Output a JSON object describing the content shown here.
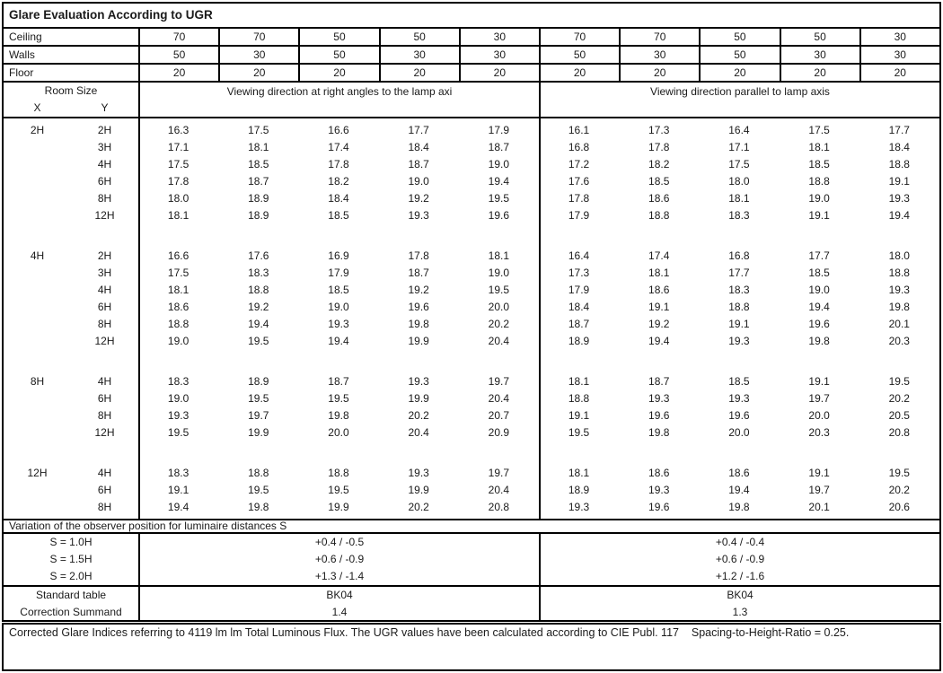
{
  "title": "Glare Evaluation According to UGR",
  "surfaces": {
    "ceiling_label": "Ceiling",
    "walls_label": "Walls",
    "floor_label": "Floor",
    "ceiling": [
      "70",
      "70",
      "50",
      "50",
      "30",
      "70",
      "70",
      "50",
      "50",
      "30"
    ],
    "walls": [
      "50",
      "30",
      "50",
      "30",
      "30",
      "50",
      "30",
      "50",
      "30",
      "30"
    ],
    "floor": [
      "20",
      "20",
      "20",
      "20",
      "20",
      "20",
      "20",
      "20",
      "20",
      "20"
    ]
  },
  "ugr_table": {
    "room_size_label": "Room Size",
    "x_label": "X",
    "y_label": "Y",
    "left_group_header": "Viewing direction at right angles to the lamp axi",
    "right_group_header": "Viewing direction parallel to lamp axis",
    "blocks": [
      {
        "x": "2H",
        "rows": [
          {
            "y": "2H",
            "left": [
              "16.3",
              "17.5",
              "16.6",
              "17.7",
              "17.9"
            ],
            "right": [
              "16.1",
              "17.3",
              "16.4",
              "17.5",
              "17.7"
            ]
          },
          {
            "y": "3H",
            "left": [
              "17.1",
              "18.1",
              "17.4",
              "18.4",
              "18.7"
            ],
            "right": [
              "16.8",
              "17.8",
              "17.1",
              "18.1",
              "18.4"
            ]
          },
          {
            "y": "4H",
            "left": [
              "17.5",
              "18.5",
              "17.8",
              "18.7",
              "19.0"
            ],
            "right": [
              "17.2",
              "18.2",
              "17.5",
              "18.5",
              "18.8"
            ]
          },
          {
            "y": "6H",
            "left": [
              "17.8",
              "18.7",
              "18.2",
              "19.0",
              "19.4"
            ],
            "right": [
              "17.6",
              "18.5",
              "18.0",
              "18.8",
              "19.1"
            ]
          },
          {
            "y": "8H",
            "left": [
              "18.0",
              "18.9",
              "18.4",
              "19.2",
              "19.5"
            ],
            "right": [
              "17.8",
              "18.6",
              "18.1",
              "19.0",
              "19.3"
            ]
          },
          {
            "y": "12H",
            "left": [
              "18.1",
              "18.9",
              "18.5",
              "19.3",
              "19.6"
            ],
            "right": [
              "17.9",
              "18.8",
              "18.3",
              "19.1",
              "19.4"
            ]
          }
        ]
      },
      {
        "x": "4H",
        "rows": [
          {
            "y": "2H",
            "left": [
              "16.6",
              "17.6",
              "16.9",
              "17.8",
              "18.1"
            ],
            "right": [
              "16.4",
              "17.4",
              "16.8",
              "17.7",
              "18.0"
            ]
          },
          {
            "y": "3H",
            "left": [
              "17.5",
              "18.3",
              "17.9",
              "18.7",
              "19.0"
            ],
            "right": [
              "17.3",
              "18.1",
              "17.7",
              "18.5",
              "18.8"
            ]
          },
          {
            "y": "4H",
            "left": [
              "18.1",
              "18.8",
              "18.5",
              "19.2",
              "19.5"
            ],
            "right": [
              "17.9",
              "18.6",
              "18.3",
              "19.0",
              "19.3"
            ]
          },
          {
            "y": "6H",
            "left": [
              "18.6",
              "19.2",
              "19.0",
              "19.6",
              "20.0"
            ],
            "right": [
              "18.4",
              "19.1",
              "18.8",
              "19.4",
              "19.8"
            ]
          },
          {
            "y": "8H",
            "left": [
              "18.8",
              "19.4",
              "19.3",
              "19.8",
              "20.2"
            ],
            "right": [
              "18.7",
              "19.2",
              "19.1",
              "19.6",
              "20.1"
            ]
          },
          {
            "y": "12H",
            "left": [
              "19.0",
              "19.5",
              "19.4",
              "19.9",
              "20.4"
            ],
            "right": [
              "18.9",
              "19.4",
              "19.3",
              "19.8",
              "20.3"
            ]
          }
        ]
      },
      {
        "x": "8H",
        "rows": [
          {
            "y": "4H",
            "left": [
              "18.3",
              "18.9",
              "18.7",
              "19.3",
              "19.7"
            ],
            "right": [
              "18.1",
              "18.7",
              "18.5",
              "19.1",
              "19.5"
            ]
          },
          {
            "y": "6H",
            "left": [
              "19.0",
              "19.5",
              "19.5",
              "19.9",
              "20.4"
            ],
            "right": [
              "18.8",
              "19.3",
              "19.3",
              "19.7",
              "20.2"
            ]
          },
          {
            "y": "8H",
            "left": [
              "19.3",
              "19.7",
              "19.8",
              "20.2",
              "20.7"
            ],
            "right": [
              "19.1",
              "19.6",
              "19.6",
              "20.0",
              "20.5"
            ]
          },
          {
            "y": "12H",
            "left": [
              "19.5",
              "19.9",
              "20.0",
              "20.4",
              "20.9"
            ],
            "right": [
              "19.5",
              "19.8",
              "20.0",
              "20.3",
              "20.8"
            ]
          }
        ]
      },
      {
        "x": "12H",
        "rows": [
          {
            "y": "4H",
            "left": [
              "18.3",
              "18.8",
              "18.8",
              "19.3",
              "19.7"
            ],
            "right": [
              "18.1",
              "18.6",
              "18.6",
              "19.1",
              "19.5"
            ]
          },
          {
            "y": "6H",
            "left": [
              "19.1",
              "19.5",
              "19.5",
              "19.9",
              "20.4"
            ],
            "right": [
              "18.9",
              "19.3",
              "19.4",
              "19.7",
              "20.2"
            ]
          },
          {
            "y": "8H",
            "left": [
              "19.4",
              "19.8",
              "19.9",
              "20.2",
              "20.8"
            ],
            "right": [
              "19.3",
              "19.6",
              "19.8",
              "20.1",
              "20.6"
            ]
          }
        ]
      }
    ]
  },
  "variation": {
    "title": "Variation of the observer position for luminaire distances S",
    "rows": [
      {
        "label": "S = 1.0H",
        "left": "+0.4 / -0.5",
        "right": "+0.4 / -0.4"
      },
      {
        "label": "S = 1.5H",
        "left": "+0.6 / -0.9",
        "right": "+0.6 / -0.9"
      },
      {
        "label": "S = 2.0H",
        "left": "+1.3 / -1.4",
        "right": "+1.2 / -1.6"
      }
    ]
  },
  "summary": {
    "rows": [
      {
        "label": "Standard table",
        "left": "BK04",
        "right": "BK04"
      },
      {
        "label": "Correction Summand",
        "left": "1.4",
        "right": "1.3"
      }
    ]
  },
  "footer": {
    "note": "Corrected Glare Indices referring to 4119 lm lm Total Luminous Flux. The UGR values have been calculated according to CIE Publ. 117    Spacing-to-Height-Ratio = 0.25."
  }
}
